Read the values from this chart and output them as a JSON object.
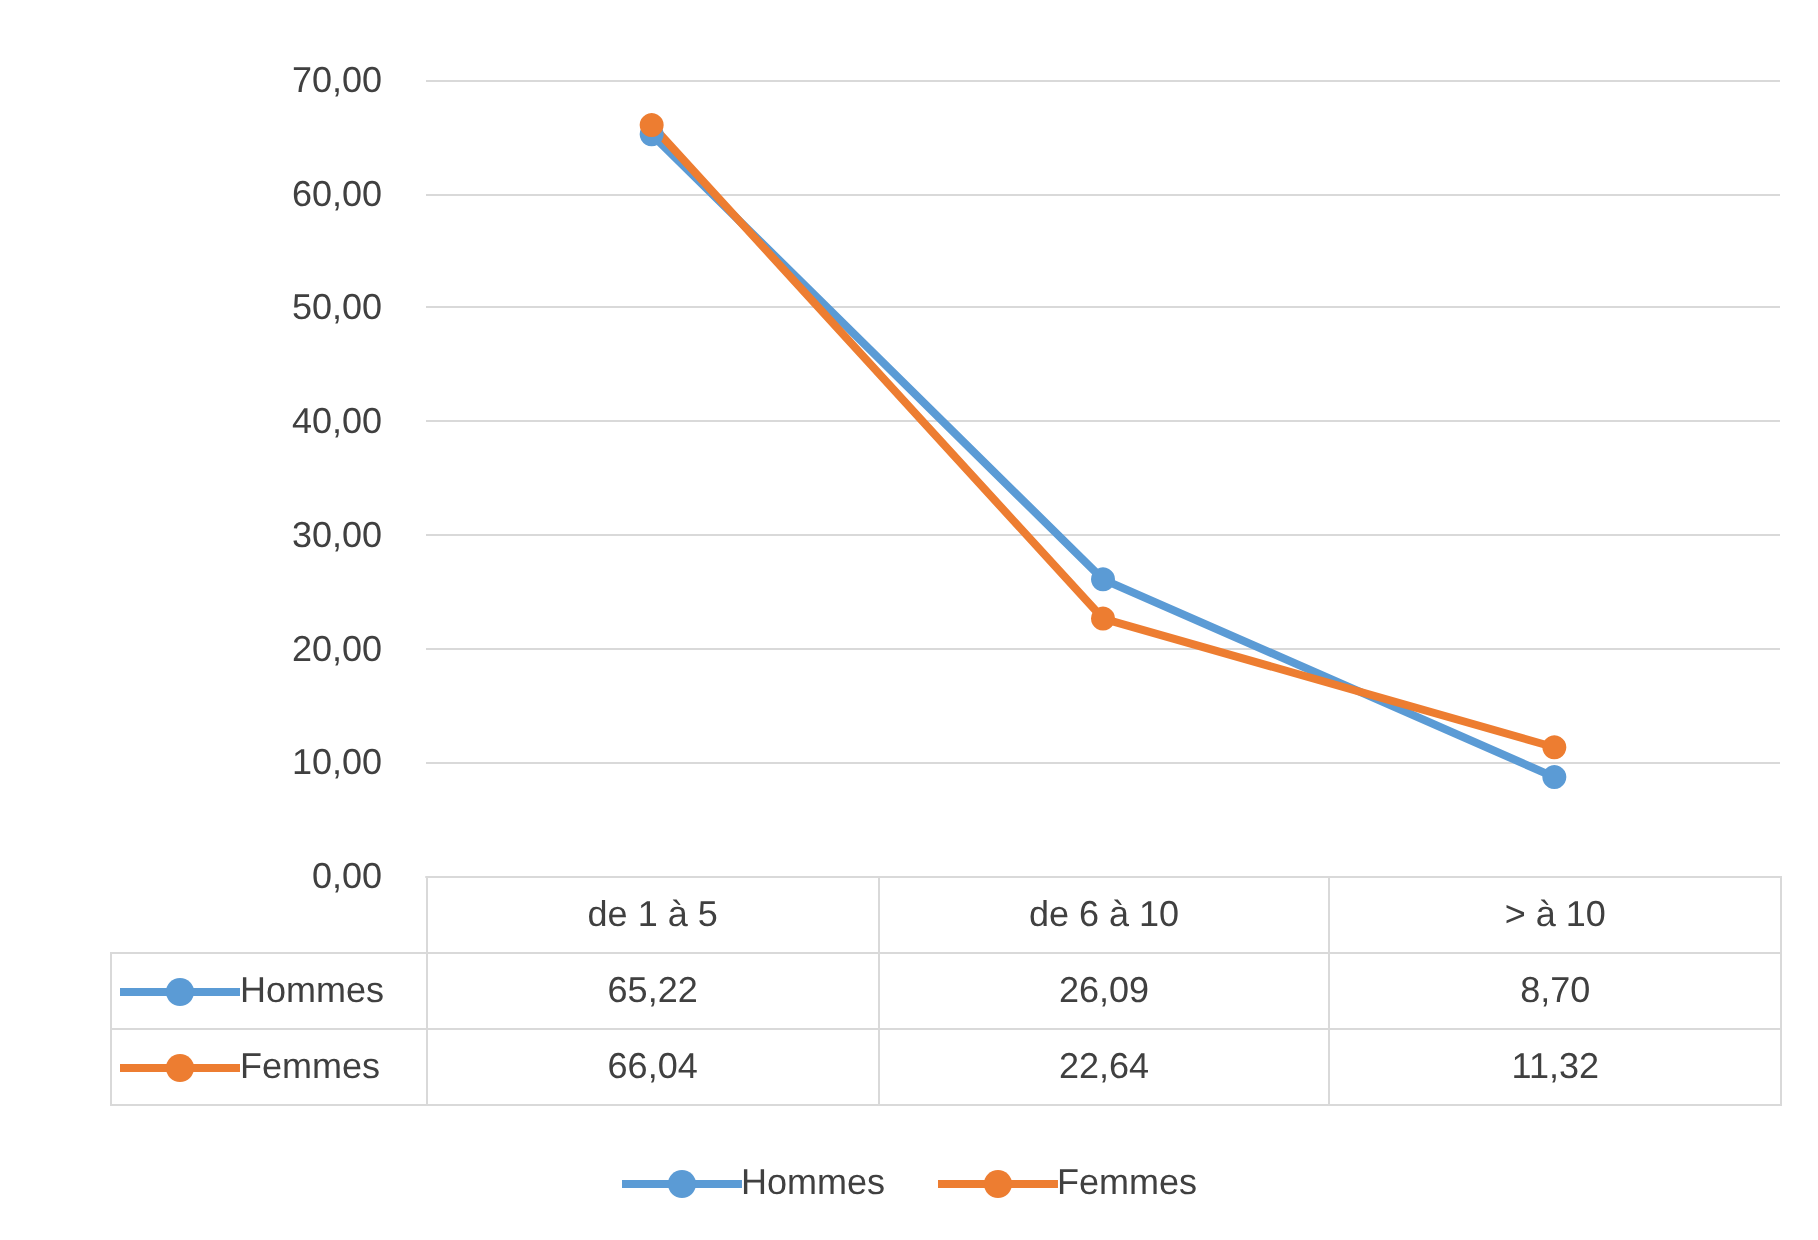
{
  "chart_data": {
    "type": "line",
    "categories": [
      "de 1 à 5",
      "de 6 à 10",
      "> à 10"
    ],
    "series": [
      {
        "name": "Hommes",
        "color": "#5b9bd5",
        "values": [
          65.22,
          26.09,
          8.7
        ],
        "value_labels": [
          "65,22",
          "26,09",
          "8,70"
        ]
      },
      {
        "name": "Femmes",
        "color": "#ed7d31",
        "values": [
          66.04,
          22.64,
          11.32
        ],
        "value_labels": [
          "66,04",
          "22,64",
          "11,32"
        ]
      }
    ],
    "ylim": [
      0,
      70
    ],
    "yticks": [
      {
        "value": 0,
        "label": "0,00"
      },
      {
        "value": 10,
        "label": "10,00"
      },
      {
        "value": 20,
        "label": "20,00"
      },
      {
        "value": 30,
        "label": "30,00"
      },
      {
        "value": 40,
        "label": "40,00"
      },
      {
        "value": 50,
        "label": "50,00"
      },
      {
        "value": 60,
        "label": "60,00"
      },
      {
        "value": 70,
        "label": "70,00"
      }
    ],
    "grid": "y",
    "legend": "bottom",
    "marker": "circle",
    "line_style": "solid"
  }
}
